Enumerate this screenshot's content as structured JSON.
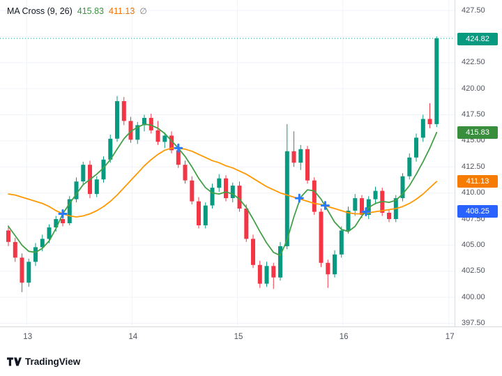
{
  "legend": {
    "title": "MA Cross (9, 26)",
    "ma_fast_value": "415.83",
    "ma_slow_value": "411.13",
    "cross_value": "∅"
  },
  "footer": {
    "brand": "TradingView"
  },
  "colors": {
    "up": "#089981",
    "down": "#f23645",
    "ma_fast": "#43a047",
    "ma_slow": "#ff9800",
    "last_price": "#089981",
    "cross_marker": "#2979ff",
    "grid": "#f0f3fa",
    "axis_text": "#50545e"
  },
  "price_axis": {
    "ticks": [
      "427.50",
      "425.00",
      "422.50",
      "420.00",
      "417.50",
      "415.00",
      "412.50",
      "410.00",
      "407.50",
      "405.00",
      "402.50",
      "400.00",
      "397.50"
    ],
    "badges": [
      {
        "id": "last-price",
        "label": "424.82",
        "price": 424.82,
        "bg": "#089981"
      },
      {
        "id": "ma-fast",
        "label": "415.83",
        "price": 415.83,
        "bg": "#388e3c"
      },
      {
        "id": "ma-slow",
        "label": "411.13",
        "price": 411.13,
        "bg": "#f57c00"
      },
      {
        "id": "reference",
        "label": "408.25",
        "price": 408.25,
        "bg": "#2962ff"
      }
    ]
  },
  "time_axis": {
    "labels": [
      {
        "text": "13",
        "i": 2.7
      },
      {
        "text": "14",
        "i": 18.2
      },
      {
        "text": "15",
        "i": 33.7
      },
      {
        "text": "16",
        "i": 49.2
      },
      {
        "text": "17",
        "i": 64.8
      }
    ]
  },
  "chart_data": {
    "type": "candlestick",
    "title": "MA Cross (9, 26)",
    "ylim": [
      397.2,
      428.5
    ],
    "y_ticks": [
      427.5,
      425.0,
      422.5,
      420.0,
      417.5,
      415.0,
      412.5,
      410.0,
      407.5,
      405.0,
      402.5,
      400.0,
      397.5
    ],
    "x_labels": [
      "13",
      "14",
      "15",
      "16",
      "17"
    ],
    "grid": true,
    "legend_position": "top-left",
    "last_price": 424.82,
    "candles_ohlc": [
      [
        406.4,
        406.9,
        404.9,
        405.3
      ],
      [
        405.3,
        405.7,
        403.4,
        403.8
      ],
      [
        403.8,
        404.2,
        400.5,
        401.4
      ],
      [
        401.4,
        403.7,
        401.0,
        403.4
      ],
      [
        403.4,
        405.2,
        403.0,
        404.8
      ],
      [
        404.8,
        406.0,
        404.4,
        405.6
      ],
      [
        405.6,
        407.0,
        405.2,
        406.7
      ],
      [
        406.7,
        407.8,
        406.3,
        407.5
      ],
      [
        407.5,
        408.2,
        406.8,
        407.1
      ],
      [
        407.1,
        409.7,
        406.9,
        409.4
      ],
      [
        409.4,
        411.5,
        409.1,
        411.1
      ],
      [
        411.1,
        413.0,
        410.8,
        412.7
      ],
      [
        412.7,
        413.1,
        409.5,
        409.9
      ],
      [
        409.9,
        411.6,
        409.6,
        411.3
      ],
      [
        411.3,
        413.5,
        411.0,
        413.2
      ],
      [
        413.2,
        415.6,
        412.9,
        415.2
      ],
      [
        415.2,
        419.3,
        414.9,
        418.8
      ],
      [
        418.8,
        419.2,
        416.5,
        416.9
      ],
      [
        416.9,
        417.3,
        414.8,
        415.1
      ],
      [
        415.1,
        416.8,
        414.7,
        416.5
      ],
      [
        416.5,
        417.5,
        415.9,
        417.2
      ],
      [
        417.2,
        417.6,
        415.7,
        416.0
      ],
      [
        416.0,
        416.9,
        414.6,
        414.9
      ],
      [
        414.9,
        415.8,
        414.3,
        415.5
      ],
      [
        415.5,
        415.9,
        413.8,
        414.1
      ],
      [
        414.1,
        414.5,
        412.4,
        412.7
      ],
      [
        412.7,
        413.1,
        410.9,
        411.2
      ],
      [
        411.2,
        411.6,
        408.9,
        409.2
      ],
      [
        409.2,
        409.6,
        406.6,
        406.9
      ],
      [
        406.9,
        409.1,
        406.6,
        408.8
      ],
      [
        408.8,
        410.9,
        408.5,
        410.5
      ],
      [
        410.5,
        411.8,
        410.1,
        411.4
      ],
      [
        411.4,
        411.7,
        409.2,
        409.5
      ],
      [
        409.5,
        411.0,
        409.1,
        410.7
      ],
      [
        410.7,
        411.1,
        408.2,
        408.5
      ],
      [
        408.5,
        408.9,
        405.3,
        405.6
      ],
      [
        405.6,
        406.0,
        402.8,
        403.1
      ],
      [
        403.1,
        403.5,
        400.9,
        401.3
      ],
      [
        401.3,
        403.4,
        401.0,
        403.0
      ],
      [
        403.0,
        403.3,
        400.8,
        401.9
      ],
      [
        401.9,
        405.3,
        401.6,
        404.9
      ],
      [
        404.9,
        416.6,
        404.6,
        414.0
      ],
      [
        414.0,
        415.9,
        412.5,
        412.9
      ],
      [
        412.9,
        414.6,
        412.2,
        414.2
      ],
      [
        414.2,
        414.5,
        410.9,
        411.2
      ],
      [
        411.2,
        411.5,
        407.9,
        408.2
      ],
      [
        408.2,
        408.5,
        402.9,
        403.3
      ],
      [
        403.3,
        403.6,
        400.9,
        402.2
      ],
      [
        402.2,
        404.5,
        401.9,
        404.1
      ],
      [
        404.1,
        406.8,
        403.8,
        406.4
      ],
      [
        406.4,
        408.7,
        406.1,
        408.3
      ],
      [
        408.3,
        409.9,
        407.8,
        409.5
      ],
      [
        409.5,
        409.8,
        407.6,
        407.9
      ],
      [
        407.9,
        409.7,
        407.5,
        409.4
      ],
      [
        409.4,
        410.6,
        408.9,
        410.2
      ],
      [
        410.2,
        410.5,
        407.8,
        408.1
      ],
      [
        408.1,
        408.4,
        407.2,
        407.5
      ],
      [
        407.5,
        409.8,
        407.2,
        409.5
      ],
      [
        409.5,
        411.9,
        409.2,
        411.6
      ],
      [
        411.6,
        413.8,
        411.3,
        413.4
      ],
      [
        413.4,
        415.7,
        413.0,
        415.3
      ],
      [
        415.3,
        417.5,
        414.9,
        417.1
      ],
      [
        417.1,
        418.6,
        416.2,
        416.6
      ],
      [
        416.6,
        425.0,
        416.3,
        424.82
      ]
    ],
    "ma_fast": {
      "period": 9,
      "current": 415.83,
      "values": [
        406.8,
        405.9,
        405.0,
        404.4,
        404.3,
        404.7,
        405.4,
        406.6,
        408.0,
        409.0,
        409.9,
        410.8,
        411.3,
        411.8,
        412.4,
        413.2,
        414.2,
        415.2,
        415.9,
        416.3,
        416.6,
        416.5,
        416.2,
        415.7,
        415.0,
        414.3,
        413.5,
        412.5,
        411.4,
        410.5,
        410.0,
        409.9,
        410.1,
        409.9,
        409.4,
        408.6,
        407.5,
        406.3,
        405.2,
        404.3,
        404.0,
        405.5,
        407.7,
        409.6,
        410.3,
        410.2,
        409.4,
        408.3,
        407.2,
        406.5,
        406.3,
        406.8,
        407.8,
        408.6,
        409.0,
        409.2,
        409.1,
        409.3,
        409.9,
        410.7,
        411.8,
        413.0,
        414.3,
        415.8
      ]
    },
    "ma_slow": {
      "period": 26,
      "current": 411.13,
      "values": [
        409.9,
        409.8,
        409.6,
        409.4,
        409.2,
        409.0,
        408.7,
        408.3,
        408.0,
        407.8,
        407.7,
        407.8,
        408.0,
        408.3,
        408.7,
        409.2,
        409.8,
        410.5,
        411.2,
        411.9,
        412.6,
        413.2,
        413.7,
        414.1,
        414.3,
        414.3,
        414.2,
        414.0,
        413.7,
        413.4,
        413.1,
        412.9,
        412.6,
        412.4,
        412.1,
        411.8,
        411.4,
        411.0,
        410.6,
        410.3,
        410.0,
        409.8,
        409.6,
        409.4,
        409.2,
        409.0,
        408.9,
        408.7,
        408.5,
        408.3,
        408.1,
        408.0,
        408.0,
        408.1,
        408.2,
        408.3,
        408.4,
        408.5,
        408.7,
        409.0,
        409.4,
        409.9,
        410.5,
        411.1
      ]
    },
    "cross_markers": [
      {
        "i": 8,
        "price": 408.0
      },
      {
        "i": 25,
        "price": 414.3
      },
      {
        "i": 42.8,
        "price": 409.5
      },
      {
        "i": 46.6,
        "price": 408.8
      },
      {
        "i": 52.6,
        "price": 408.2
      }
    ]
  }
}
